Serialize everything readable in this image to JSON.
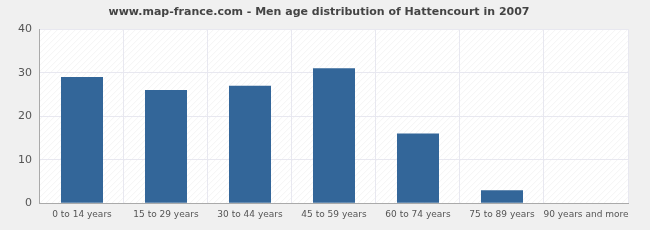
{
  "chart_data": {
    "type": "bar",
    "title": "www.map-france.com - Men age distribution of Hattencourt in 2007",
    "categories": [
      "0 to 14 years",
      "15 to 29 years",
      "30 to 44 years",
      "45 to 59 years",
      "60 to 74 years",
      "75 to 89 years",
      "90 years and more"
    ],
    "values": [
      29,
      26,
      27,
      31,
      16,
      3,
      0
    ],
    "color": "#336699",
    "ylim": [
      0,
      40
    ],
    "yticks": [
      0,
      10,
      20,
      30,
      40
    ],
    "grid": true
  }
}
